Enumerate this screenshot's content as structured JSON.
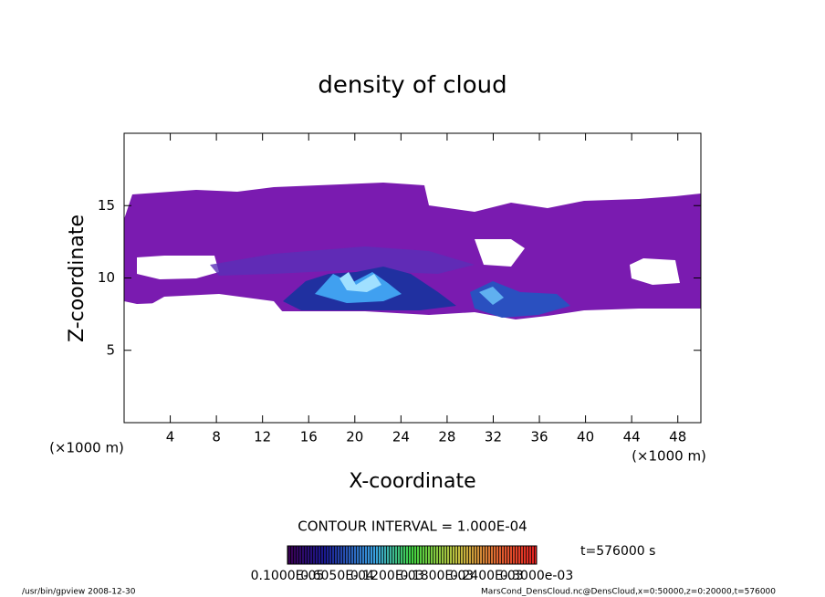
{
  "chart_data": {
    "type": "contour",
    "title": "density of cloud",
    "xlabel": "X-coordinate",
    "ylabel": "Z-coordinate",
    "x_unit_label": "(×1000 m)",
    "xlim": [
      0,
      50
    ],
    "xticks": [
      4,
      8,
      12,
      16,
      20,
      24,
      28,
      32,
      36,
      40,
      44,
      48
    ],
    "ylim": [
      0,
      20
    ],
    "yticks": [
      5,
      10,
      15
    ],
    "contour_interval_label": "CONTOUR INTERVAL = 1.000E-04",
    "time_label": "t=576000 s",
    "colorbar_labels": [
      "0.1000E-05",
      "0.6050E-04",
      "0.1200E-03",
      "0.1800E-03",
      "0.2400E-03",
      "0.3000e-03"
    ],
    "footer_left": "/usr/bin/gpview   2008-12-30",
    "footer_right": "MarsCond_DensCloud.nc@DensCloud,x=0:50000,z=0:20000,t=576000"
  }
}
